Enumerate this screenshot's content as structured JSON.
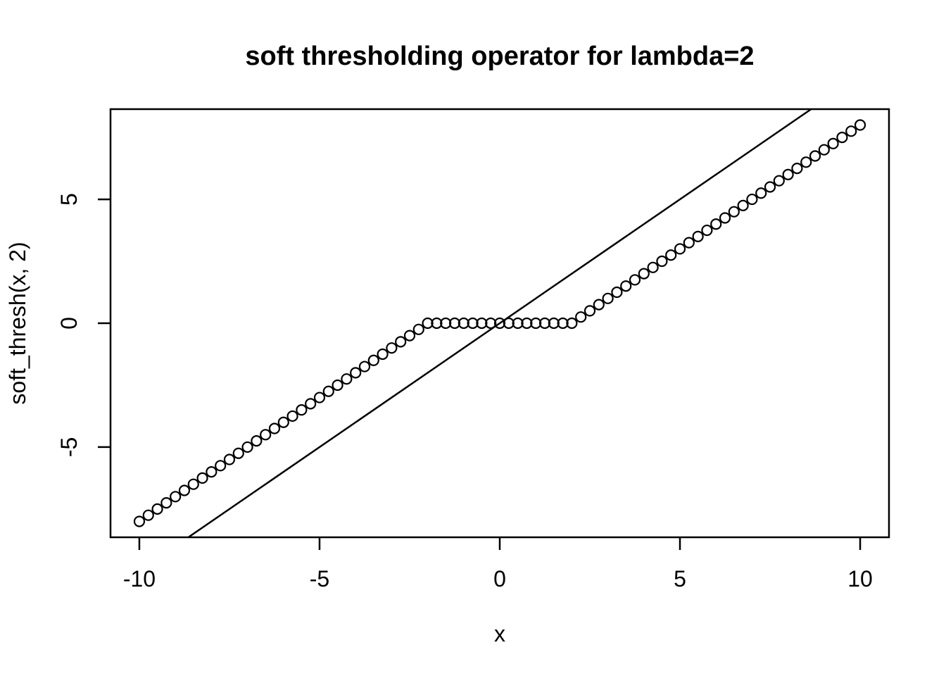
{
  "figure": {
    "background_color": "#ffffff",
    "foreground_color": "#000000"
  },
  "chart_data": {
    "type": "scatter",
    "title": "soft thresholding operator for lambda=2",
    "xlabel": "x",
    "ylabel": "soft_thresh(x, 2)",
    "xlim": [
      -10.8,
      10.8
    ],
    "ylim": [
      -8.64,
      8.64
    ],
    "xticks": [
      "-10",
      "-5",
      "0",
      "5",
      "10"
    ],
    "xtick_values": [
      -10,
      -5,
      0,
      5,
      10
    ],
    "yticks": [
      "-5",
      "0",
      "5"
    ],
    "ytick_values": [
      -5,
      0,
      5
    ],
    "grid": false,
    "legend": "none",
    "marker": "open-circle",
    "series": [
      {
        "name": "soft_thresh(x, 2) points",
        "type": "points",
        "x": [
          -10,
          -9.75,
          -9.5,
          -9.25,
          -9,
          -8.75,
          -8.5,
          -8.25,
          -8,
          -7.75,
          -7.5,
          -7.25,
          -7,
          -6.75,
          -6.5,
          -6.25,
          -6,
          -5.75,
          -5.5,
          -5.25,
          -5,
          -4.75,
          -4.5,
          -4.25,
          -4,
          -3.75,
          -3.5,
          -3.25,
          -3,
          -2.75,
          -2.5,
          -2.25,
          -2,
          -1.75,
          -1.5,
          -1.25,
          -1,
          -0.75,
          -0.5,
          -0.25,
          0,
          0.25,
          0.5,
          0.75,
          1,
          1.25,
          1.5,
          1.75,
          2,
          2.25,
          2.5,
          2.75,
          3,
          3.25,
          3.5,
          3.75,
          4,
          4.25,
          4.5,
          4.75,
          5,
          5.25,
          5.5,
          5.75,
          6,
          6.25,
          6.5,
          6.75,
          7,
          7.25,
          7.5,
          7.75,
          8,
          8.25,
          8.5,
          8.75,
          9,
          9.25,
          9.5,
          9.75,
          10
        ],
        "y": [
          -8,
          -7.75,
          -7.5,
          -7.25,
          -7,
          -6.75,
          -6.5,
          -6.25,
          -6,
          -5.75,
          -5.5,
          -5.25,
          -5,
          -4.75,
          -4.5,
          -4.25,
          -4,
          -3.75,
          -3.5,
          -3.25,
          -3,
          -2.75,
          -2.5,
          -2.25,
          -2,
          -1.75,
          -1.5,
          -1.25,
          -1,
          -0.75,
          -0.5,
          -0.25,
          0,
          0,
          0,
          0,
          0,
          0,
          0,
          0,
          0,
          0,
          0,
          0,
          0,
          0,
          0,
          0,
          0,
          0.25,
          0.5,
          0.75,
          1,
          1.25,
          1.5,
          1.75,
          2,
          2.25,
          2.5,
          2.75,
          3,
          3.25,
          3.5,
          3.75,
          4,
          4.25,
          4.5,
          4.75,
          5,
          5.25,
          5.5,
          5.75,
          6,
          6.25,
          6.5,
          6.75,
          7,
          7.25,
          7.5,
          7.75,
          8
        ],
        "color": "#000000"
      },
      {
        "name": "identity line y = x",
        "type": "abline",
        "intercept": 0,
        "slope": 1,
        "color": "#000000"
      }
    ]
  }
}
